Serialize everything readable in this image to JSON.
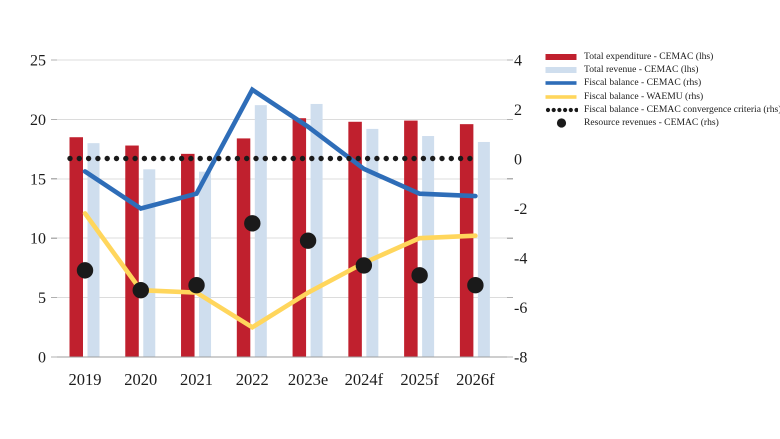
{
  "figure": {
    "background": "#ffffff",
    "text_color": "#1c1c1c",
    "gridline_color": "#dcdcdc",
    "axis_line_color": "#9e9e9e",
    "tick_color": "#b0b0b0"
  },
  "chart_data": {
    "type": "bar",
    "subtype": "combo-bar-line-points",
    "categories": [
      "2019",
      "2020",
      "2021",
      "2022",
      "2023e",
      "2024f",
      "2025f",
      "2026f"
    ],
    "left_axis": {
      "ticks": [
        25,
        20,
        15,
        10,
        5,
        0
      ],
      "range": [
        0,
        25
      ]
    },
    "right_axis": {
      "ticks": [
        4,
        2,
        0,
        -2,
        -4,
        -6,
        -8
      ],
      "range": [
        -8,
        4
      ]
    },
    "grid": true,
    "legend_position": "top-right",
    "series": [
      {
        "name": "Total expenditure - CEMAC (lhs)",
        "type": "bar",
        "axis": "left",
        "color": "#c0202e",
        "values": [
          18.5,
          17.8,
          17.1,
          18.4,
          20.1,
          19.8,
          19.9,
          19.6
        ]
      },
      {
        "name": "Total revenue - CEMAC (lhs)",
        "type": "bar",
        "axis": "left",
        "color": "#cfdeee",
        "values": [
          18.0,
          15.8,
          15.6,
          21.2,
          21.3,
          19.2,
          18.6,
          18.1
        ]
      },
      {
        "name": "Fiscal balance - CEMAC (rhs)",
        "type": "line",
        "axis": "right",
        "color": "#2e6db8",
        "values": [
          -0.5,
          -2.0,
          -1.4,
          2.8,
          1.3,
          -0.4,
          -1.4,
          -1.5
        ]
      },
      {
        "name": "Fiscal balance - WAEMU (rhs)",
        "type": "line",
        "axis": "right",
        "color": "#ffd65c",
        "values": [
          -2.2,
          -5.3,
          -5.4,
          -6.8,
          -5.4,
          -4.2,
          -3.2,
          -3.1
        ]
      },
      {
        "name": "Fiscal balance - CEMAC convergence criteria (rhs)",
        "type": "dotted-line",
        "axis": "right",
        "color": "#1a1a1a",
        "values": [
          0,
          0,
          0,
          0,
          0,
          0,
          0,
          0
        ]
      },
      {
        "name": "Resource revenues - CEMAC (rhs)",
        "type": "points",
        "axis": "right",
        "color": "#1a1a1a",
        "values": [
          -4.5,
          -5.3,
          -5.1,
          -2.6,
          -3.3,
          -4.3,
          -4.7,
          -5.1
        ]
      }
    ]
  }
}
